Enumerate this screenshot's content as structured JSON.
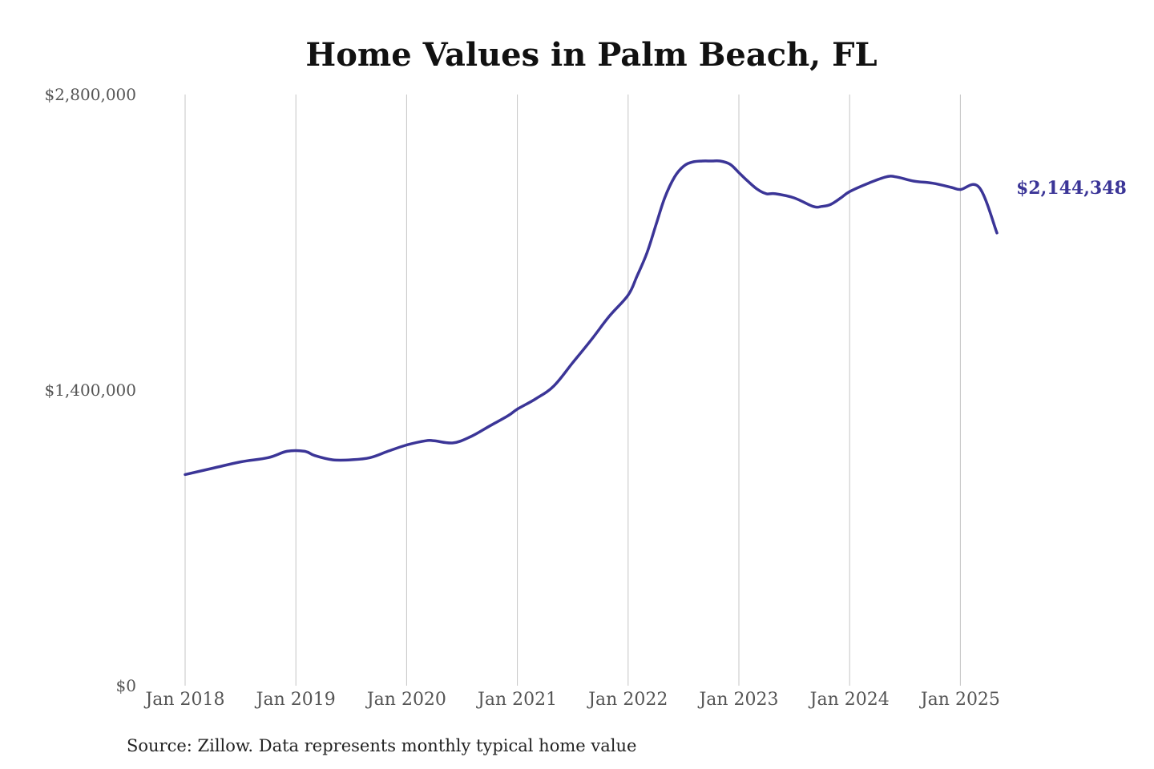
{
  "chart_data": {
    "type": "line",
    "title": "Home Values in Palm Beach, FL",
    "xlabel": "",
    "ylabel": "",
    "source": "Source: Zillow. Data represents monthly typical home value",
    "ylim": [
      0,
      2800000
    ],
    "y_ticks": [
      {
        "value": 0,
        "label": "$0"
      },
      {
        "value": 1400000,
        "label": "$1,400,000"
      },
      {
        "value": 2800000,
        "label": "$2,800,000"
      }
    ],
    "x_ticks": [
      {
        "value": 2018.0,
        "label": "Jan 2018"
      },
      {
        "value": 2019.0,
        "label": "Jan 2019"
      },
      {
        "value": 2020.0,
        "label": "Jan 2020"
      },
      {
        "value": 2021.0,
        "label": "Jan 2021"
      },
      {
        "value": 2022.0,
        "label": "Jan 2022"
      },
      {
        "value": 2023.0,
        "label": "Jan 2023"
      },
      {
        "value": 2024.0,
        "label": "Jan 2024"
      },
      {
        "value": 2025.0,
        "label": "Jan 2025"
      }
    ],
    "xlim": [
      2018.0,
      2025.33
    ],
    "grid": "vertical",
    "legend": "none",
    "series": [
      {
        "color": "#3b3597",
        "end_label": "$2,144,348",
        "x": [
          2018.0,
          2018.25,
          2018.5,
          2018.75,
          2018.92,
          2019.08,
          2019.17,
          2019.33,
          2019.5,
          2019.67,
          2019.83,
          2020.0,
          2020.17,
          2020.25,
          2020.42,
          2020.58,
          2020.75,
          2020.92,
          2021.0,
          2021.17,
          2021.33,
          2021.5,
          2021.67,
          2021.83,
          2022.0,
          2022.08,
          2022.17,
          2022.25,
          2022.33,
          2022.42,
          2022.5,
          2022.58,
          2022.67,
          2022.75,
          2022.83,
          2022.92,
          2023.0,
          2023.08,
          2023.17,
          2023.25,
          2023.33,
          2023.5,
          2023.67,
          2023.75,
          2023.83,
          2023.92,
          2024.0,
          2024.17,
          2024.33,
          2024.42,
          2024.58,
          2024.75,
          2024.92,
          2025.0,
          2025.17,
          2025.33
        ],
        "y": [
          1000000,
          1030000,
          1060000,
          1080000,
          1110000,
          1110000,
          1090000,
          1070000,
          1070000,
          1080000,
          1110000,
          1140000,
          1160000,
          1160000,
          1150000,
          1180000,
          1230000,
          1280000,
          1310000,
          1360000,
          1420000,
          1530000,
          1640000,
          1750000,
          1850000,
          1940000,
          2050000,
          2180000,
          2310000,
          2410000,
          2460000,
          2480000,
          2485000,
          2485000,
          2485000,
          2470000,
          2430000,
          2390000,
          2350000,
          2330000,
          2330000,
          2310000,
          2270000,
          2270000,
          2280000,
          2310000,
          2340000,
          2380000,
          2410000,
          2410000,
          2390000,
          2380000,
          2360000,
          2350000,
          2360000,
          2144348
        ]
      }
    ]
  }
}
